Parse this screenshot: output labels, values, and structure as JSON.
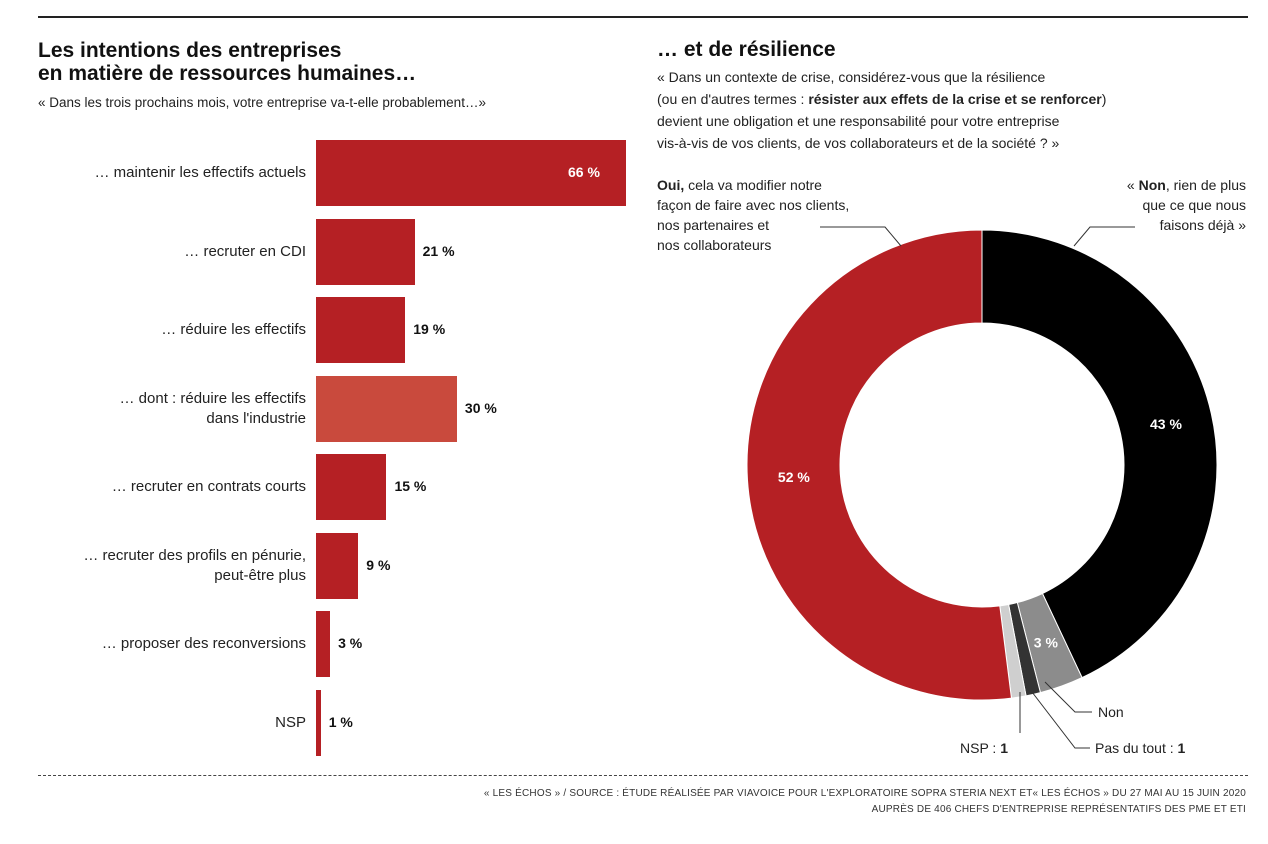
{
  "left": {
    "title_line1": "Les intentions des entreprises",
    "title_line2": "en matière de ressources humaines…",
    "question": "« Dans les trois prochains mois, votre entreprise va-t-elle probablement…»"
  },
  "right": {
    "title": "… et de résilience",
    "question_line1": "« Dans un contexte de crise, considérez-vous que la résilience",
    "question_line2_pre": "(ou en d'autres termes : ",
    "question_line2_bold": "résister aux effets de la crise et se renforcer",
    "question_line2_post": ")",
    "question_line3": "devient une obligation et une responsabilité pour votre entreprise",
    "question_line4": "vis-à-vis de vos clients, de vos collaborateurs et de la société ? »",
    "oui_bold": "Oui,",
    "oui_line1": " cela va modifier notre",
    "oui_line2": "façon de faire avec nos clients,",
    "oui_line3": "nos partenaires et",
    "oui_line4": "nos collaborateurs",
    "non_pre": "« ",
    "non_bold": "Non",
    "non_line1": ", rien de plus",
    "non_line2": "que ce que nous",
    "non_line3": "faisons déjà »",
    "label_non_small": "Non",
    "label_nsp": "NSP : ",
    "label_nsp_val": "1",
    "label_pasdutout": "Pas du tout  : ",
    "label_pasdutout_val": "1"
  },
  "chart_data": [
    {
      "type": "bar",
      "orientation": "horizontal",
      "categories": [
        [
          "… maintenir les effectifs actuels"
        ],
        [
          "… recruter en CDI"
        ],
        [
          "… réduire les effectifs"
        ],
        [
          "… dont : réduire les effectifs",
          "dans l'industrie"
        ],
        [
          "… recruter en contrats courts"
        ],
        [
          "… recruter des profils en pénurie,",
          "peut-être plus"
        ],
        [
          "… proposer des reconversions"
        ],
        [
          "NSP"
        ]
      ],
      "values": [
        66,
        21,
        19,
        30,
        15,
        9,
        3,
        1
      ],
      "value_labels": [
        "66 %",
        "21 %",
        "19 %",
        "30 %",
        "15 %",
        "9 %",
        "3 %",
        "1 %"
      ],
      "colors": [
        "#b52024",
        "#b52024",
        "#b52024",
        "#c94a3d",
        "#b52024",
        "#b52024",
        "#b52024",
        "#b52024"
      ],
      "xlim": [
        0,
        66
      ]
    },
    {
      "type": "pie",
      "style": "donut",
      "categories": [
        "Non, rien de plus que ce que nous faisons déjà",
        "Non",
        "Pas du tout",
        "NSP",
        "Oui"
      ],
      "values": [
        43,
        3,
        1,
        1,
        52
      ],
      "value_labels": [
        "43 %",
        "3 %",
        "",
        "",
        "52 %"
      ],
      "colors": [
        "#000000",
        "#8c8c8c",
        "#333333",
        "#cfcfcf",
        "#b52024"
      ]
    }
  ],
  "footer": {
    "line1": "« LES ÉCHOS » / SOURCE : ÉTUDE RÉALISÉE PAR VIAVOICE POUR L'EXPLORATOIRE SOPRA STERIA NEXT ET« LES ÉCHOS » DU 27 MAI AU 15 JUIN 2020",
    "line2": "AUPRÈS DE 406 CHEFS D'ENTREPRISE REPRÉSENTATIFS DES PME ET ETI"
  }
}
